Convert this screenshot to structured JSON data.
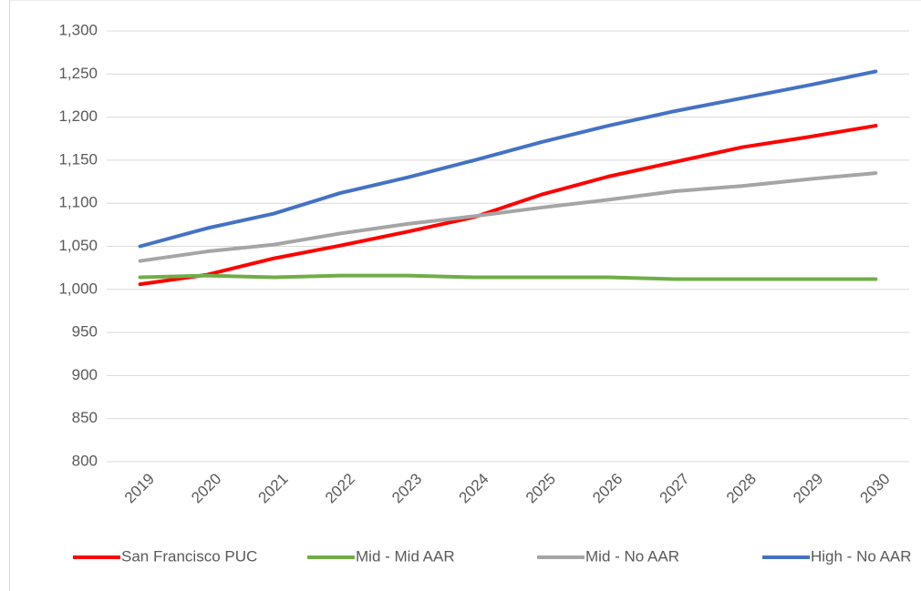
{
  "chart_data": {
    "type": "line",
    "x": [
      "2019",
      "2020",
      "2021",
      "2022",
      "2023",
      "2024",
      "2025",
      "2026",
      "2027",
      "2028",
      "2029",
      "2030"
    ],
    "series": [
      {
        "name": "San Francisco PUC",
        "color": "#ff0000",
        "values": [
          1006,
          1017,
          1036,
          1051,
          1067,
          1084,
          1110,
          1131,
          1148,
          1165,
          1177,
          1190
        ]
      },
      {
        "name": "Mid - Mid AAR",
        "color": "#70ad47",
        "values": [
          1014,
          1016,
          1014,
          1016,
          1016,
          1014,
          1014,
          1014,
          1012,
          1012,
          1012,
          1012
        ]
      },
      {
        "name": "Mid - No AAR",
        "color": "#a5a5a5",
        "values": [
          1033,
          1044,
          1052,
          1065,
          1076,
          1085,
          1095,
          1104,
          1114,
          1120,
          1128,
          1135
        ]
      },
      {
        "name": "High - No AAR",
        "color": "#4472c4",
        "values": [
          1050,
          1071,
          1088,
          1112,
          1130,
          1150,
          1171,
          1190,
          1207,
          1222,
          1237,
          1253
        ]
      }
    ],
    "ylim": [
      800,
      1300
    ],
    "yticks": [
      800,
      850,
      900,
      950,
      {
        "value": 1000,
        "label": "1,000"
      },
      {
        "value": 1050,
        "label": "1,050"
      },
      {
        "value": 1100,
        "label": "1,100"
      },
      {
        "value": 1150,
        "label": "1,150"
      },
      {
        "value": 1200,
        "label": "1,200"
      },
      {
        "value": 1250,
        "label": "1,250"
      },
      {
        "value": 1300,
        "label": "1,300"
      }
    ],
    "grid": true,
    "legend": "bottom"
  }
}
